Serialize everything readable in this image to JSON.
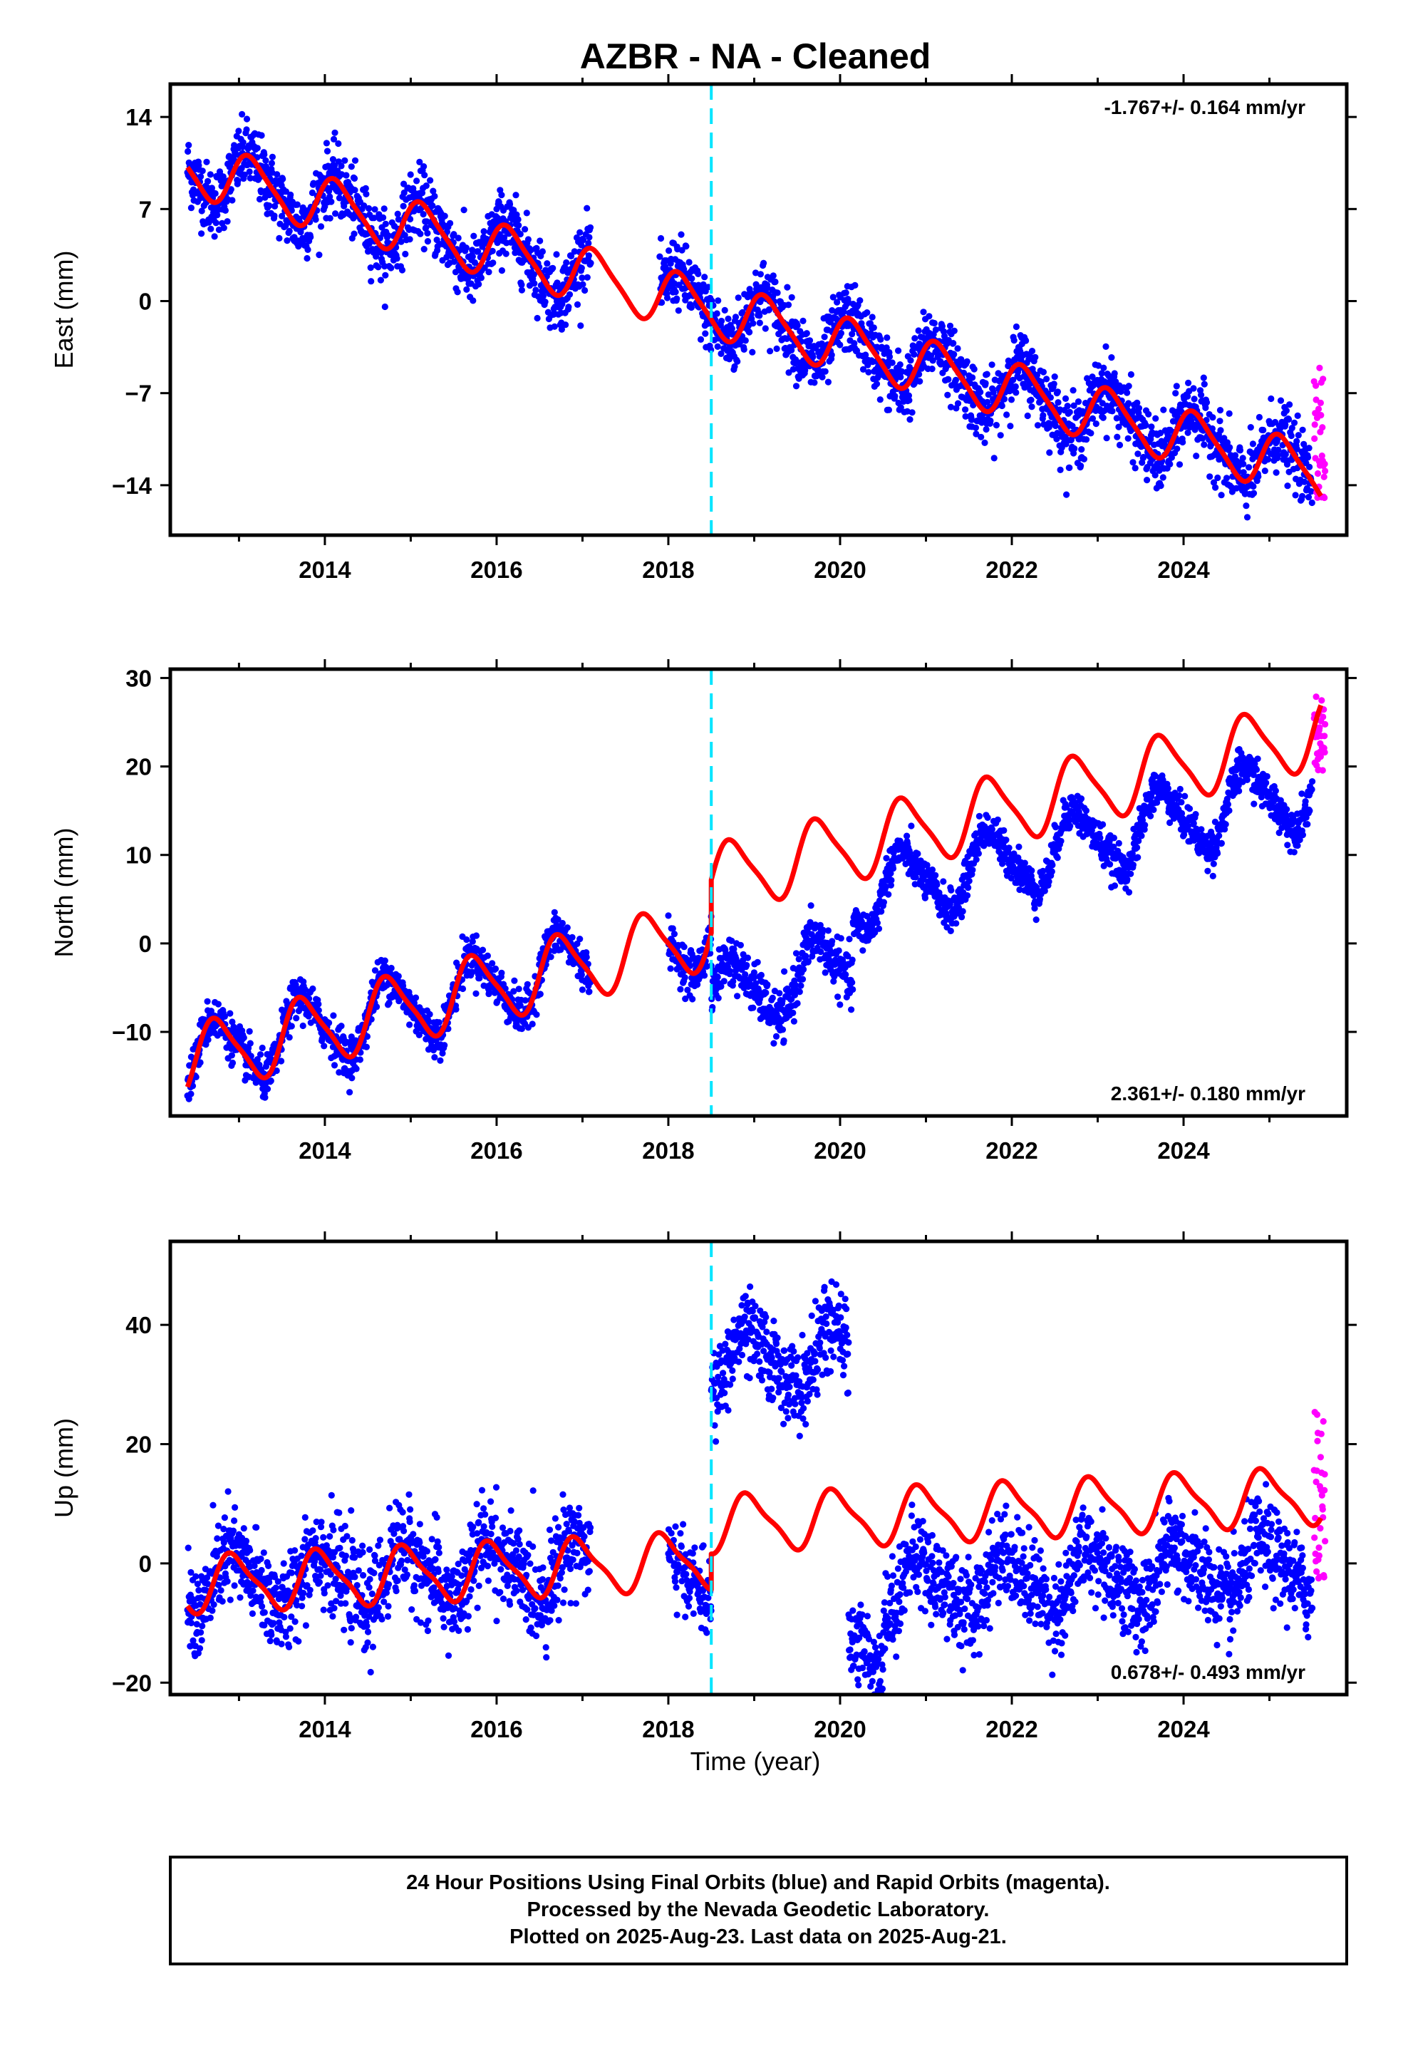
{
  "title": "AZBR  - NA - Cleaned",
  "colors": {
    "final_orbits": "#0000ff",
    "rapid_orbits": "#ff00ff",
    "model_fit": "#ff0000",
    "event_line": "#00e5ff"
  },
  "footer": {
    "line1": "24 Hour Positions Using Final Orbits (blue) and Rapid Orbits (magenta).",
    "line2": "Processed by the Nevada Geodetic Laboratory.",
    "line3": "Plotted on 2025-Aug-23. Last data on 2025-Aug-21."
  },
  "chart_data": [
    {
      "type": "scatter",
      "component": "east",
      "ylabel": "East (mm)",
      "xlabel": "",
      "rate_label": "-1.767+/- 0.164 mm/yr",
      "rate_label_position": "top-right",
      "xlim": [
        2012.2,
        2025.9
      ],
      "ylim": [
        -17.8,
        16.5
      ],
      "x_ticks": [
        2014,
        2016,
        2018,
        2020,
        2022,
        2024
      ],
      "y_ticks": [
        14,
        7,
        0,
        -7,
        -14
      ],
      "y_tick_labels": [
        "14",
        "7",
        "0",
        "−7",
        "−14"
      ],
      "event_line_x": 2018.5,
      "trend": {
        "rate": -1.767,
        "sigma": 0.164,
        "offset_at_2012_5": 10.0,
        "step_at_event": 0.0
      },
      "seasonal": {
        "annual_amplitude": 2.0,
        "semiannual_amplitude": 0.4,
        "phase_year": 0.9
      },
      "data_segments": [
        {
          "from": 2012.4,
          "to": 2017.1,
          "scatter": 1.3
        },
        {
          "from": 2017.9,
          "to": 2025.5,
          "scatter": 1.3
        }
      ],
      "rapid_segment": {
        "from": 2025.52,
        "to": 2025.65,
        "values_range": [
          -15.0,
          -3.0
        ]
      },
      "series": [
        {
          "name": "Final orbits",
          "color": "#0000ff"
        },
        {
          "name": "Rapid orbits",
          "color": "#ff00ff"
        },
        {
          "name": "Model",
          "color": "#ff0000"
        }
      ]
    },
    {
      "type": "scatter",
      "component": "north",
      "ylabel": "North (mm)",
      "xlabel": "",
      "rate_label": "2.361+/- 0.180 mm/yr",
      "rate_label_position": "bottom-right",
      "xlim": [
        2012.2,
        2025.9
      ],
      "ylim": [
        -19.5,
        31.0
      ],
      "x_ticks": [
        2014,
        2016,
        2018,
        2020,
        2022,
        2024
      ],
      "y_ticks": [
        30,
        20,
        10,
        0,
        -10
      ],
      "y_tick_labels": [
        "30",
        "20",
        "10",
        "0",
        "−10"
      ],
      "event_line_x": 2018.5,
      "trend": {
        "rate": 2.361,
        "sigma": 0.18,
        "offset_at_2012_5": -13.0,
        "step_at_event": 6.0
      },
      "seasonal": {
        "annual_amplitude": 3.8,
        "semiannual_amplitude": 0.8,
        "phase_year": 0.5
      },
      "data_segments": [
        {
          "from": 2012.4,
          "to": 2017.1,
          "scatter": 1.2,
          "shift": 0.0
        },
        {
          "from": 2018.0,
          "to": 2018.5,
          "scatter": 1.2,
          "shift": 0.0
        },
        {
          "from": 2018.5,
          "to": 2020.15,
          "scatter": 1.4,
          "shift": -7.5
        },
        {
          "from": 2020.15,
          "to": 2025.5,
          "scatter": 1.1,
          "shift": 0.0
        }
      ],
      "rapid_segment": {
        "from": 2025.52,
        "to": 2025.65,
        "values_range": [
          19.5,
          29.0
        ]
      },
      "series": [
        {
          "name": "Final orbits",
          "color": "#0000ff"
        },
        {
          "name": "Rapid orbits",
          "color": "#ff00ff"
        },
        {
          "name": "Model",
          "color": "#ff0000"
        }
      ]
    },
    {
      "type": "scatter",
      "component": "up",
      "ylabel": "Up (mm)",
      "xlabel": "Time (year)",
      "rate_label": "0.678+/- 0.493 mm/yr",
      "rate_label_position": "bottom-right",
      "xlim": [
        2012.2,
        2025.9
      ],
      "ylim": [
        -22.0,
        54.0
      ],
      "x_ticks": [
        2014,
        2016,
        2018,
        2020,
        2022,
        2024
      ],
      "y_ticks": [
        40,
        20,
        0,
        -20
      ],
      "y_tick_labels": [
        "40",
        "20",
        "0",
        "−20"
      ],
      "event_line_x": 2018.5,
      "trend": {
        "rate": 0.678,
        "sigma": 0.493,
        "offset_at_2012_5": -3.5,
        "step_at_event": 6.0
      },
      "seasonal": {
        "annual_amplitude": 4.5,
        "semiannual_amplitude": 1.2,
        "phase_year": 0.7
      },
      "data_segments": [
        {
          "from": 2012.4,
          "to": 2017.1,
          "scatter": 4.0,
          "shift": 0.0
        },
        {
          "from": 2018.0,
          "to": 2018.5,
          "scatter": 3.0,
          "shift": -2.0
        },
        {
          "from": 2018.5,
          "to": 2020.1,
          "scatter": 3.5,
          "shift": 33.0
        },
        {
          "from": 2020.1,
          "to": 2020.5,
          "scatter": 3.5,
          "shift": -15.0
        },
        {
          "from": 2020.5,
          "to": 2025.5,
          "scatter": 3.8,
          "shift": -6.0
        }
      ],
      "rapid_segment": {
        "from": 2025.52,
        "to": 2025.65,
        "values_range": [
          -3.0,
          29.0
        ]
      },
      "series": [
        {
          "name": "Final orbits",
          "color": "#0000ff"
        },
        {
          "name": "Rapid orbits",
          "color": "#ff00ff"
        },
        {
          "name": "Model",
          "color": "#ff0000"
        }
      ]
    }
  ]
}
